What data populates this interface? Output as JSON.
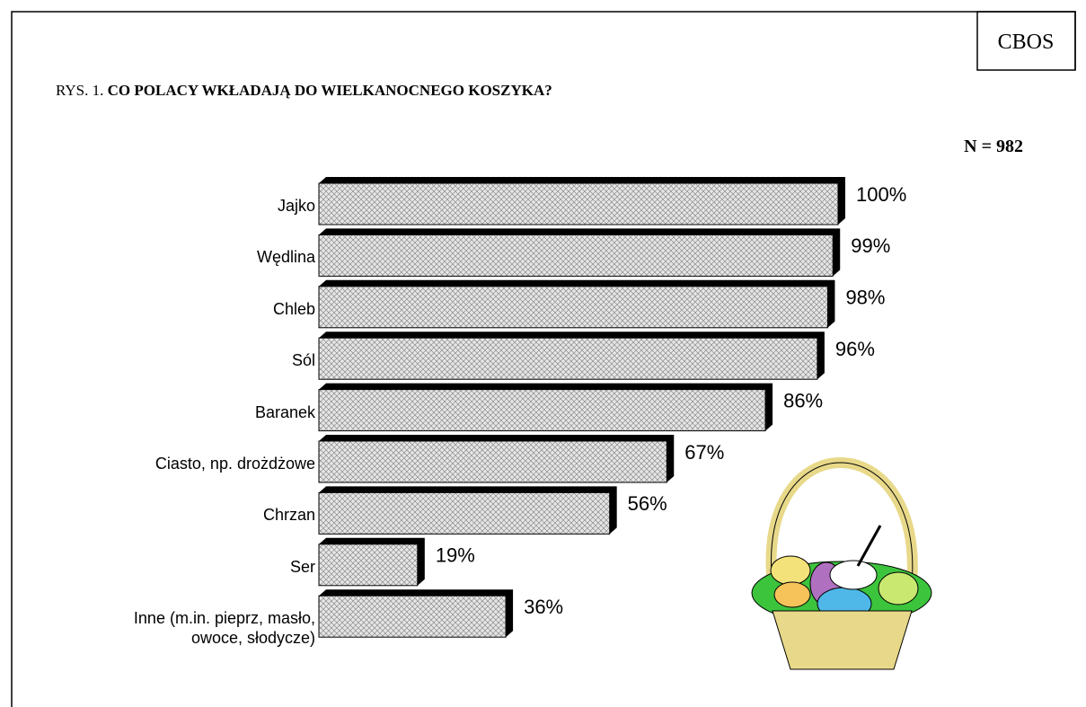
{
  "chart_data": {
    "type": "hbar",
    "source": "CBOS",
    "figure_label": "RYS. 1.",
    "title": "CO POLACY WKŁADAJĄ DO WIELKANOCNEGO KOSZYKA?",
    "sample_note": "N = 982",
    "categories": [
      "Jajko",
      "Wędlina",
      "Chleb",
      "Sól",
      "Baranek",
      "Ciasto, np. drożdżowe",
      "Chrzan",
      "Ser",
      "Inne (m.in. pieprz, masło, owoce, słodycze)"
    ],
    "values": [
      100,
      99,
      98,
      96,
      86,
      67,
      56,
      19,
      36
    ],
    "value_labels": [
      "100%",
      "99%",
      "98%",
      "96%",
      "86%",
      "67%",
      "56%",
      "19%",
      "36%"
    ],
    "xlim": [
      0,
      100
    ],
    "color": "#d9d9d9"
  }
}
